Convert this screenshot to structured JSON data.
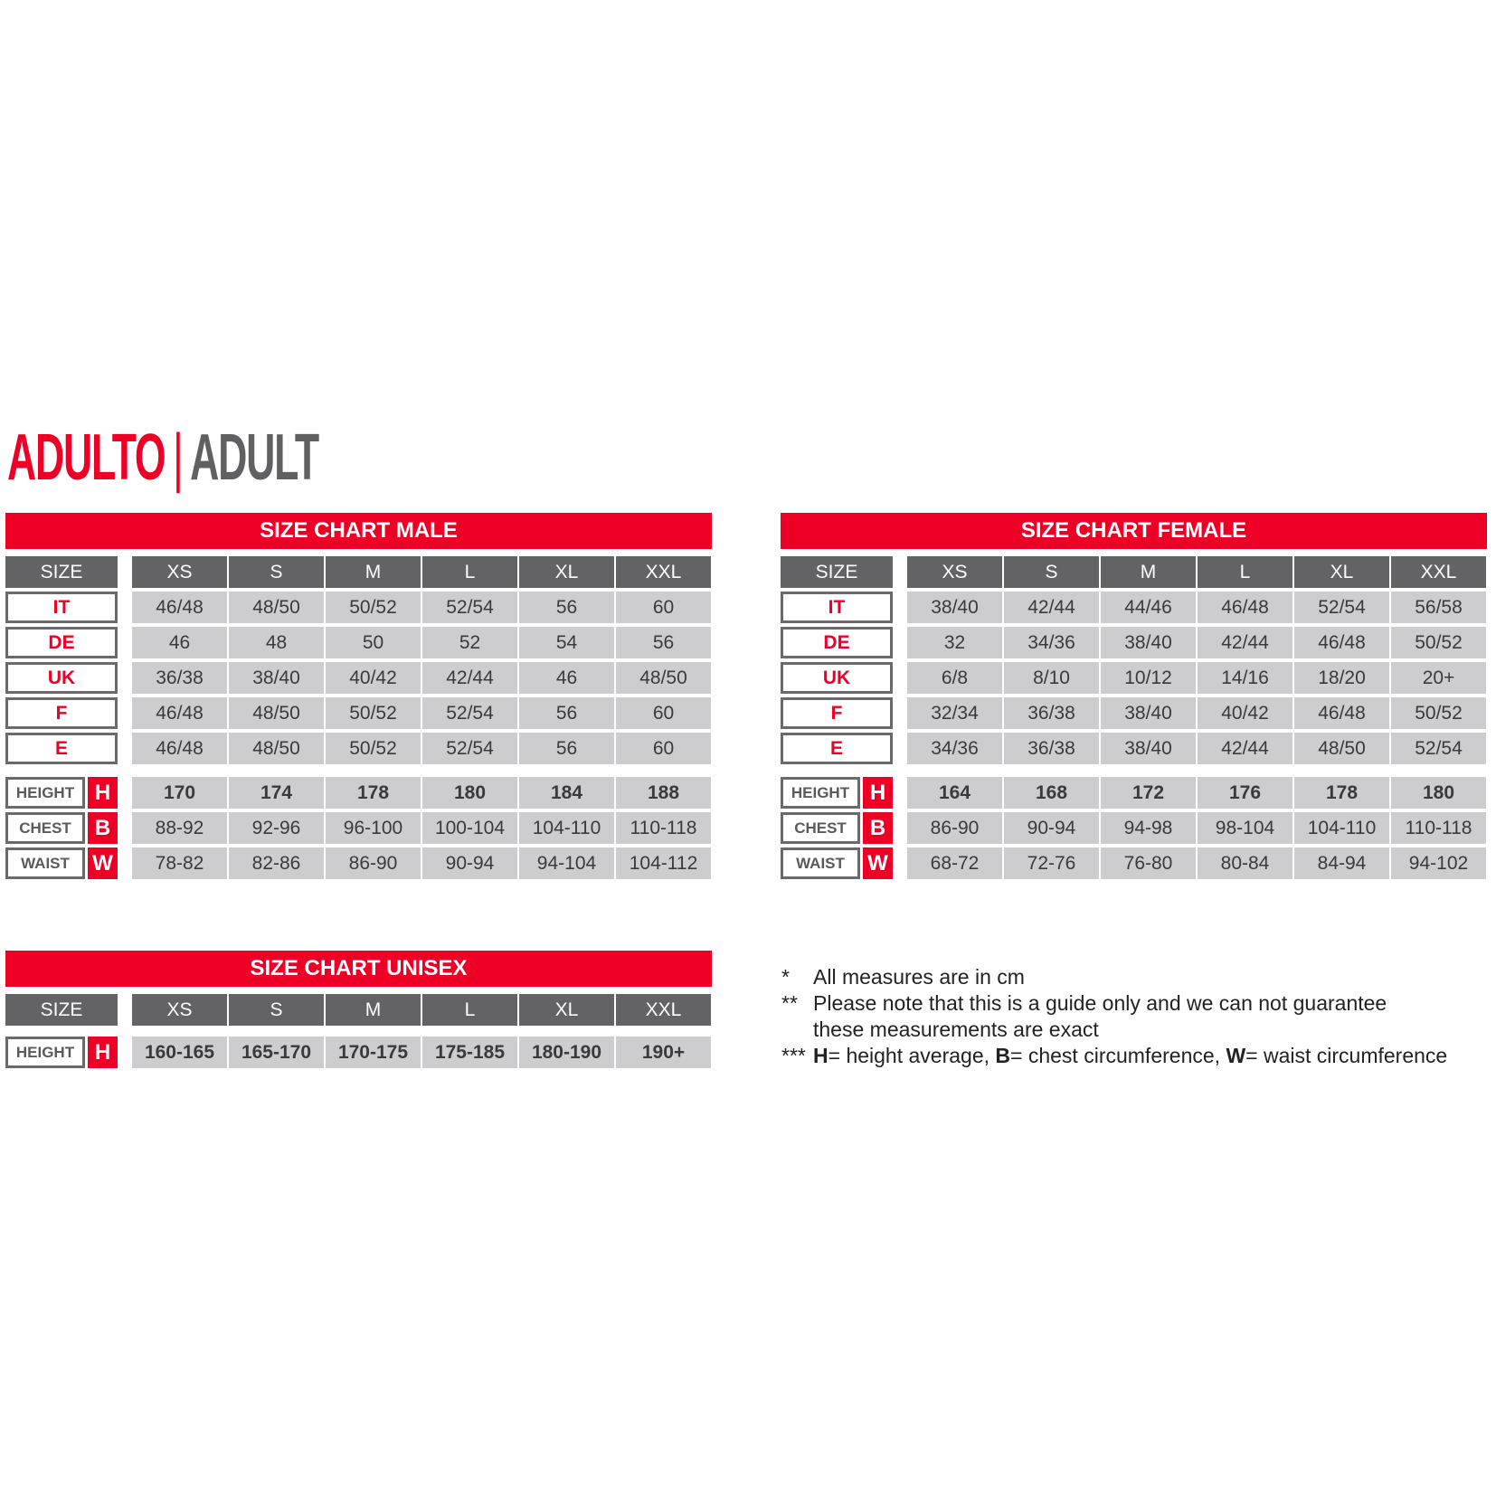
{
  "title": {
    "left": "ADULTO",
    "separator": "|",
    "right": "ADULT"
  },
  "colors": {
    "red": "#ee0026",
    "header_gray": "#636365",
    "cell_gray": "#cdcdcf"
  },
  "male": {
    "title": "SIZE CHART MALE",
    "size_label": "SIZE",
    "sizes": [
      "XS",
      "S",
      "M",
      "L",
      "XL",
      "XXL"
    ],
    "rows": [
      {
        "label": "IT",
        "values": [
          "46/48",
          "48/50",
          "50/52",
          "52/54",
          "56",
          "60"
        ]
      },
      {
        "label": "DE",
        "values": [
          "46",
          "48",
          "50",
          "52",
          "54",
          "56"
        ]
      },
      {
        "label": "UK",
        "values": [
          "36/38",
          "38/40",
          "40/42",
          "42/44",
          "46",
          "48/50"
        ]
      },
      {
        "label": "F",
        "values": [
          "46/48",
          "48/50",
          "50/52",
          "52/54",
          "56",
          "60"
        ]
      },
      {
        "label": "E",
        "values": [
          "46/48",
          "48/50",
          "50/52",
          "52/54",
          "56",
          "60"
        ]
      }
    ],
    "measures": [
      {
        "label": "HEIGHT",
        "letter": "H",
        "values": [
          "170",
          "174",
          "178",
          "180",
          "184",
          "188"
        ]
      },
      {
        "label": "CHEST",
        "letter": "B",
        "values": [
          "88-92",
          "92-96",
          "96-100",
          "100-104",
          "104-110",
          "110-118"
        ]
      },
      {
        "label": "WAIST",
        "letter": "W",
        "values": [
          "78-82",
          "82-86",
          "86-90",
          "90-94",
          "94-104",
          "104-112"
        ]
      }
    ]
  },
  "female": {
    "title": "SIZE CHART FEMALE",
    "size_label": "SIZE",
    "sizes": [
      "XS",
      "S",
      "M",
      "L",
      "XL",
      "XXL"
    ],
    "rows": [
      {
        "label": "IT",
        "values": [
          "38/40",
          "42/44",
          "44/46",
          "46/48",
          "52/54",
          "56/58"
        ]
      },
      {
        "label": "DE",
        "values": [
          "32",
          "34/36",
          "38/40",
          "42/44",
          "46/48",
          "50/52"
        ]
      },
      {
        "label": "UK",
        "values": [
          "6/8",
          "8/10",
          "10/12",
          "14/16",
          "18/20",
          "20+"
        ]
      },
      {
        "label": "F",
        "values": [
          "32/34",
          "36/38",
          "38/40",
          "40/42",
          "46/48",
          "50/52"
        ]
      },
      {
        "label": "E",
        "values": [
          "34/36",
          "36/38",
          "38/40",
          "42/44",
          "48/50",
          "52/54"
        ]
      }
    ],
    "measures": [
      {
        "label": "HEIGHT",
        "letter": "H",
        "values": [
          "164",
          "168",
          "172",
          "176",
          "178",
          "180"
        ]
      },
      {
        "label": "CHEST",
        "letter": "B",
        "values": [
          "86-90",
          "90-94",
          "94-98",
          "98-104",
          "104-110",
          "110-118"
        ]
      },
      {
        "label": "WAIST",
        "letter": "W",
        "values": [
          "68-72",
          "72-76",
          "76-80",
          "80-84",
          "84-94",
          "94-102"
        ]
      }
    ]
  },
  "unisex": {
    "title": "SIZE CHART UNISEX",
    "size_label": "SIZE",
    "sizes": [
      "XS",
      "S",
      "M",
      "L",
      "XL",
      "XXL"
    ],
    "rows": [],
    "measures": [
      {
        "label": "HEIGHT",
        "letter": "H",
        "values": [
          "160-165",
          "165-170",
          "170-175",
          "175-185",
          "180-190",
          "190+"
        ]
      }
    ]
  },
  "notes": [
    {
      "marker": "*",
      "parts": [
        {
          "text": "All measures are in cm"
        }
      ]
    },
    {
      "marker": "**",
      "parts": [
        {
          "text": "Please note that this is a guide only and we can not guarantee"
        }
      ]
    },
    {
      "marker": "",
      "parts": [
        {
          "text": "these measurements are exact"
        }
      ]
    },
    {
      "marker": "***",
      "parts": [
        {
          "text": "H",
          "bold": true
        },
        {
          "text": "= height average, "
        },
        {
          "text": "B",
          "bold": true
        },
        {
          "text": "= chest circumference, "
        },
        {
          "text": "W",
          "bold": true
        },
        {
          "text": "= waist circumference"
        }
      ]
    }
  ]
}
